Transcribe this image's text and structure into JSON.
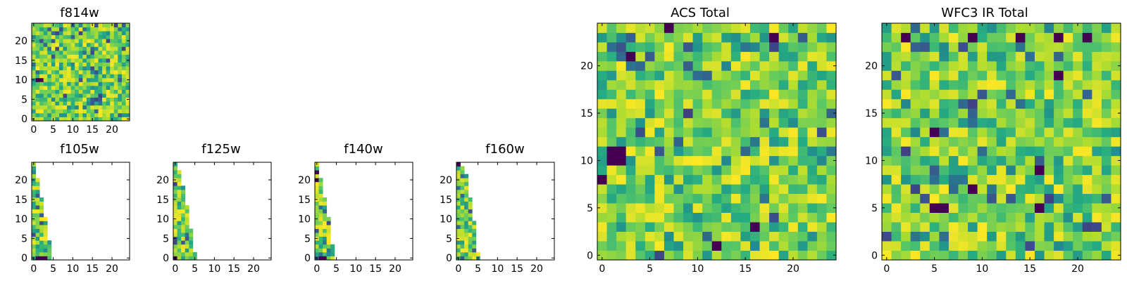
{
  "chart_data": [
    {
      "type": "heatmap",
      "title": "f814w",
      "grid_cols": 25,
      "grid_rows": 25,
      "x_ticks": [
        0,
        5,
        10,
        15,
        20
      ],
      "y_ticks": [
        0,
        5,
        10,
        15,
        20
      ],
      "xlim": [
        -0.5,
        24.5
      ],
      "ylim": [
        -0.5,
        24.5
      ],
      "fill_profile": "full",
      "colormap": "viridis",
      "dark_cells": [
        [
          1,
          10
        ],
        [
          2,
          10
        ]
      ]
    },
    {
      "type": "heatmap",
      "title": "f105w",
      "grid_cols": 25,
      "grid_rows": 25,
      "x_ticks": [
        0,
        5,
        10,
        15,
        20
      ],
      "y_ticks": [
        0,
        5,
        10,
        15,
        20
      ],
      "xlim": [
        -0.5,
        24.5
      ],
      "ylim": [
        -0.5,
        24.5
      ],
      "fill_profile": "triangle",
      "row_widths": [
        5,
        5,
        5,
        5,
        5,
        4,
        4,
        4,
        4,
        4,
        4,
        3,
        3,
        3,
        3,
        3,
        2,
        2,
        2,
        2,
        2,
        1,
        1,
        1,
        1
      ],
      "colormap": "viridis",
      "dark_cells": [
        [
          1,
          0
        ],
        [
          2,
          0
        ],
        [
          3,
          0
        ]
      ]
    },
    {
      "type": "heatmap",
      "title": "f125w",
      "grid_cols": 25,
      "grid_rows": 25,
      "x_ticks": [
        0,
        5,
        10,
        15,
        20
      ],
      "y_ticks": [
        0,
        5,
        10,
        15,
        20
      ],
      "xlim": [
        -0.5,
        24.5
      ],
      "ylim": [
        -0.5,
        24.5
      ],
      "fill_profile": "triangle",
      "row_widths": [
        6,
        6,
        5,
        5,
        5,
        5,
        5,
        5,
        4,
        4,
        4,
        4,
        4,
        4,
        3,
        3,
        3,
        3,
        3,
        2,
        2,
        2,
        2,
        1,
        1
      ],
      "colormap": "viridis",
      "dark_cells": [
        [
          0,
          0
        ]
      ]
    },
    {
      "type": "heatmap",
      "title": "f140w",
      "grid_cols": 25,
      "grid_rows": 25,
      "x_ticks": [
        0,
        5,
        10,
        15,
        20
      ],
      "y_ticks": [
        0,
        5,
        10,
        15,
        20
      ],
      "xlim": [
        -0.5,
        24.5
      ],
      "ylim": [
        -0.5,
        24.5
      ],
      "fill_profile": "triangle",
      "row_widths": [
        5,
        5,
        5,
        5,
        4,
        4,
        4,
        4,
        4,
        4,
        4,
        3,
        3,
        3,
        3,
        3,
        2,
        2,
        2,
        2,
        2,
        1,
        1,
        1,
        1
      ],
      "colormap": "viridis",
      "dark_cells": [
        [
          1,
          0
        ],
        [
          2,
          0
        ],
        [
          0,
          20
        ],
        [
          0,
          22
        ]
      ]
    },
    {
      "type": "heatmap",
      "title": "f160w",
      "grid_cols": 25,
      "grid_rows": 25,
      "x_ticks": [
        0,
        5,
        10,
        15,
        20
      ],
      "y_ticks": [
        0,
        5,
        10,
        15,
        20
      ],
      "xlim": [
        -0.5,
        24.5
      ],
      "ylim": [
        -0.5,
        24.5
      ],
      "fill_profile": "triangle",
      "row_widths": [
        6,
        6,
        5,
        5,
        5,
        5,
        5,
        5,
        5,
        5,
        4,
        4,
        4,
        4,
        4,
        4,
        3,
        3,
        3,
        3,
        3,
        3,
        2,
        2,
        1
      ],
      "colormap": "viridis",
      "dark_cells": [
        [
          0,
          24
        ]
      ]
    },
    {
      "type": "heatmap",
      "title": "ACS Total",
      "grid_cols": 25,
      "grid_rows": 25,
      "x_ticks": [
        0,
        5,
        10,
        15,
        20
      ],
      "y_ticks": [
        0,
        5,
        10,
        15,
        20
      ],
      "xlim": [
        -0.5,
        24.5
      ],
      "ylim": [
        -0.5,
        24.5
      ],
      "fill_profile": "full",
      "colormap": "viridis",
      "dark_cells": [
        [
          1,
          10
        ],
        [
          1,
          11
        ],
        [
          2,
          10
        ],
        [
          2,
          11
        ],
        [
          0,
          8
        ],
        [
          7,
          24
        ],
        [
          18,
          23
        ],
        [
          3,
          21
        ],
        [
          16,
          3
        ],
        [
          12,
          1
        ]
      ]
    },
    {
      "type": "heatmap",
      "title": "WFC3 IR Total",
      "grid_cols": 25,
      "grid_rows": 25,
      "x_ticks": [
        0,
        5,
        10,
        15,
        20
      ],
      "y_ticks": [
        0,
        5,
        10,
        15,
        20
      ],
      "xlim": [
        -0.5,
        24.5
      ],
      "ylim": [
        -0.5,
        24.5
      ],
      "fill_profile": "full",
      "colormap": "viridis",
      "dark_cells": [
        [
          5,
          5
        ],
        [
          6,
          5
        ],
        [
          9,
          7
        ],
        [
          16,
          9
        ],
        [
          5,
          13
        ],
        [
          9,
          23
        ],
        [
          14,
          23
        ],
        [
          18,
          23
        ],
        [
          21,
          23
        ],
        [
          18,
          19
        ],
        [
          2,
          23
        ],
        [
          16,
          5
        ]
      ]
    }
  ]
}
